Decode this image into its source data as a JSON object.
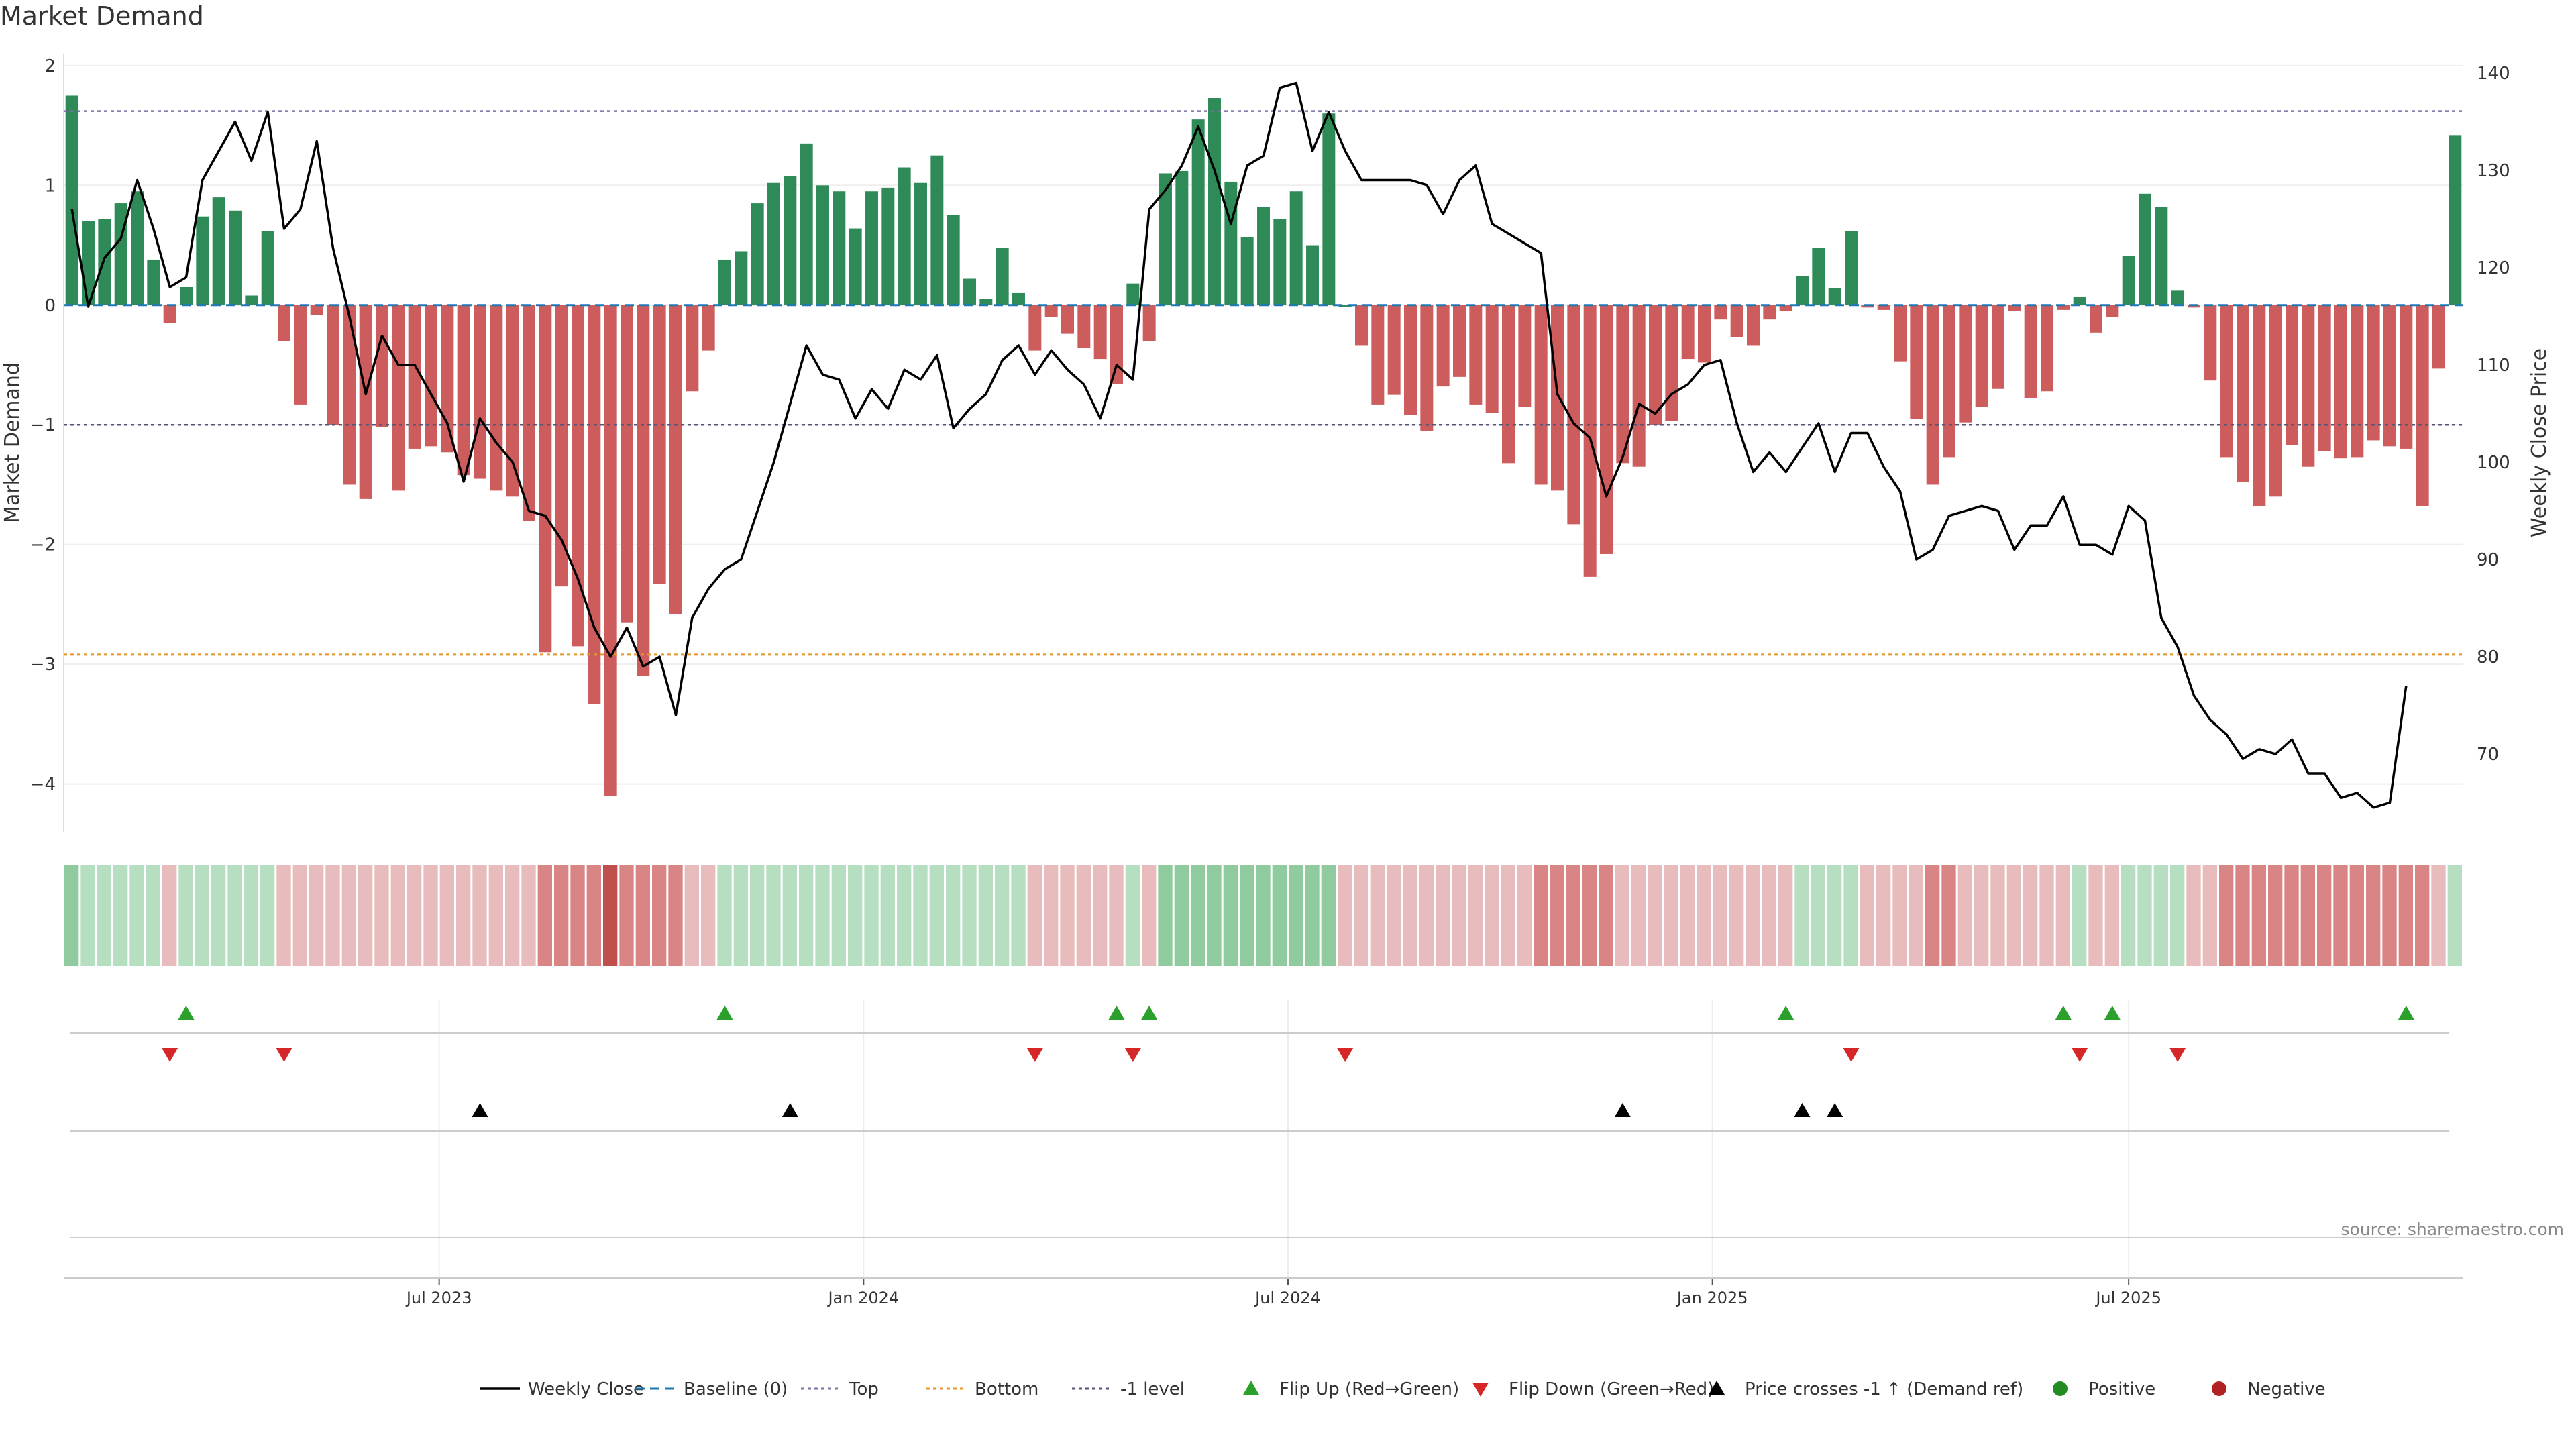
{
  "chart_data": {
    "type": "bar",
    "title": "Market Demand",
    "source": "source: sharemaestro.com",
    "ylabel": "Market Demand",
    "y2label": "Weekly Close Price",
    "ylim": [
      -4.4,
      2.1
    ],
    "y2lim": [
      62,
      142
    ],
    "yticks": [
      "2",
      "1",
      "0",
      "−1",
      "−2",
      "−3",
      "−4"
    ],
    "y2ticks": [
      "140",
      "130",
      "120",
      "110",
      "100",
      "90",
      "80",
      "70"
    ],
    "xticks": [
      "Jul 2023",
      "Jan 2024",
      "Jul 2024",
      "Jan 2025",
      "Jul 2025"
    ],
    "reference_lines": {
      "top": 1.62,
      "bottom": -2.92,
      "minus_one": -1.0
    },
    "colors": {
      "positive": "#2e8b57",
      "negative": "#cd5c5c",
      "price": "#000000",
      "flip_up": "#2ca02c",
      "flip_down": "#d62728",
      "crossing": "#000000",
      "top": "#7b6fa8",
      "bottom": "#e8962c",
      "baseline": "#1f77b4",
      "dot_pos": "#228b22",
      "dot_neg": "#b22222"
    },
    "series": [
      {
        "name": "Market Demand",
        "values": [
          1.75,
          0.7,
          0.72,
          0.85,
          0.95,
          0.38,
          -0.15,
          0.15,
          0.74,
          0.9,
          0.79,
          0.08,
          0.62,
          -0.3,
          -0.83,
          -0.08,
          -1.0,
          -1.5,
          -1.62,
          -1.02,
          -1.55,
          -1.2,
          -1.18,
          -1.23,
          -1.42,
          -1.45,
          -1.55,
          -1.6,
          -1.8,
          -2.9,
          -2.35,
          -2.85,
          -3.33,
          -4.1,
          -2.65,
          -3.1,
          -2.33,
          -2.58,
          -0.72,
          -0.38,
          0.38,
          0.45,
          0.85,
          1.02,
          1.08,
          1.35,
          1.0,
          0.95,
          0.64,
          0.95,
          0.98,
          1.15,
          1.02,
          1.25,
          0.75,
          0.22,
          0.05,
          0.48,
          0.1,
          -0.38,
          -0.1,
          -0.24,
          -0.36,
          -0.45,
          -0.66,
          0.18,
          -0.3,
          1.1,
          1.12,
          1.55,
          1.73,
          1.03,
          0.57,
          0.82,
          0.72,
          0.95,
          0.5,
          1.6,
          0.0,
          -0.34,
          -0.83,
          -0.75,
          -0.92,
          -1.05,
          -0.68,
          -0.6,
          -0.83,
          -0.9,
          -1.32,
          -0.85,
          -1.5,
          -1.55,
          -1.83,
          -2.27,
          -2.08,
          -1.32,
          -1.35,
          -1.0,
          -0.97,
          -0.45,
          -0.48,
          -0.12,
          -0.27,
          -0.34,
          -0.12,
          -0.05,
          0.24,
          0.48,
          0.14,
          0.62,
          -0.02,
          -0.04,
          -0.47,
          -0.95,
          -1.5,
          -1.27,
          -0.98,
          -0.85,
          -0.7,
          -0.05,
          -0.78,
          -0.72,
          -0.04,
          0.07,
          -0.23,
          -0.1,
          0.41,
          0.93,
          0.82,
          0.12,
          -0.02,
          -0.63,
          -1.27,
          -1.48,
          -1.68,
          -1.6,
          -1.17,
          -1.35,
          -1.22,
          -1.28,
          -1.27,
          -1.13,
          -1.18,
          -1.2,
          -1.68,
          -0.53,
          1.42
        ]
      },
      {
        "name": "Weekly Close",
        "values": [
          126.0,
          116.0,
          121.0,
          123.0,
          129.0,
          124.0,
          118.0,
          119.0,
          129.0,
          132.0,
          135.0,
          131.0,
          136.0,
          124.0,
          126.0,
          133.0,
          122.0,
          115.0,
          107.0,
          113.0,
          110.0,
          110.0,
          107.0,
          104.0,
          98.0,
          104.5,
          102.0,
          100.0,
          95.0,
          94.5,
          92.0,
          88.0,
          83.0,
          80.0,
          83.0,
          79.0,
          80.0,
          74.0,
          84.0,
          87.0,
          89.0,
          90.0,
          95.0,
          100.0,
          106.0,
          112.0,
          109.0,
          108.5,
          104.5,
          107.5,
          105.5,
          109.5,
          108.5,
          111.0,
          103.5,
          105.5,
          107.0,
          110.5,
          112.0,
          109.0,
          111.5,
          109.5,
          108.0,
          104.5,
          110.0,
          108.5,
          126.0,
          128.0,
          130.5,
          134.5,
          130.0,
          124.5,
          130.5,
          131.5,
          138.5,
          139.0,
          132.0,
          136.0,
          132.0,
          129.0,
          129.0,
          129.0,
          129.0,
          128.5,
          125.5,
          129.0,
          130.5,
          124.5,
          123.5,
          122.5,
          121.5,
          107.0,
          104.0,
          102.5,
          96.5,
          100.5,
          106.0,
          105.0,
          107.0,
          108.0,
          110.0,
          110.5,
          104.0,
          99.0,
          101.0,
          99.0,
          101.5,
          104.0,
          99.0,
          103.0,
          103.0,
          99.5,
          97.0,
          90.0,
          91.0,
          94.5,
          95.0,
          95.5,
          95.0,
          91.0,
          93.5,
          93.5,
          96.5,
          91.5,
          91.5,
          90.5,
          95.5,
          94.0,
          84.0,
          81.0,
          76.0,
          73.5,
          72.0,
          69.5,
          70.5,
          70.0,
          71.5,
          68.0,
          68.0,
          65.5,
          66.0,
          64.5,
          65.0,
          77.0
        ]
      }
    ],
    "heat_strip": [
      2,
      1,
      1,
      1,
      1,
      1,
      -1,
      1,
      1,
      1,
      1,
      1,
      1,
      -1,
      -1,
      -1,
      -1,
      -1,
      -1,
      -1,
      -1,
      -1,
      -1,
      -1,
      -1,
      -1,
      -1,
      -1,
      -1,
      -2,
      -2,
      -2,
      -2,
      -3,
      -2,
      -2,
      -2,
      -2,
      -1,
      -1,
      1,
      1,
      1,
      1,
      1,
      1,
      1,
      1,
      1,
      1,
      1,
      1,
      1,
      1,
      1,
      1,
      1,
      1,
      1,
      -1,
      -1,
      -1,
      -1,
      -1,
      -1,
      1,
      -1,
      2,
      2,
      2,
      2,
      2,
      2,
      2,
      2,
      2,
      2,
      2,
      -1,
      -1,
      -1,
      -1,
      -1,
      -1,
      -1,
      -1,
      -1,
      -1,
      -1,
      -1,
      -2,
      -2,
      -2,
      -2,
      -2,
      -1,
      -1,
      -1,
      -1,
      -1,
      -1,
      -1,
      -1,
      -1,
      -1,
      -1,
      1,
      1,
      1,
      1,
      -1,
      -1,
      -1,
      -1,
      -2,
      -2,
      -1,
      -1,
      -1,
      -1,
      -1,
      -1,
      -1,
      1,
      -1,
      -1,
      1,
      1,
      1,
      1,
      -1,
      -1,
      -2,
      -2,
      -2,
      -2,
      -2,
      -2,
      -2,
      -2,
      -2,
      -2,
      -2,
      -2,
      -2,
      -1,
      1
    ],
    "flip_up_weeks": [
      7,
      40,
      64,
      66,
      105,
      122,
      125,
      143
    ],
    "flip_down_weeks": [
      6,
      13,
      59,
      65,
      78,
      109,
      123,
      129
    ],
    "cross_weeks": [
      25,
      44,
      95,
      106,
      108
    ],
    "legend": [
      "Weekly Close",
      "Baseline (0)",
      "Top",
      "Bottom",
      "-1 level",
      "Flip Up (Red→Green)",
      "Flip Down (Green→Red)",
      "Price crosses -1 ↑ (Demand ref)",
      "Positive",
      "Negative"
    ]
  }
}
